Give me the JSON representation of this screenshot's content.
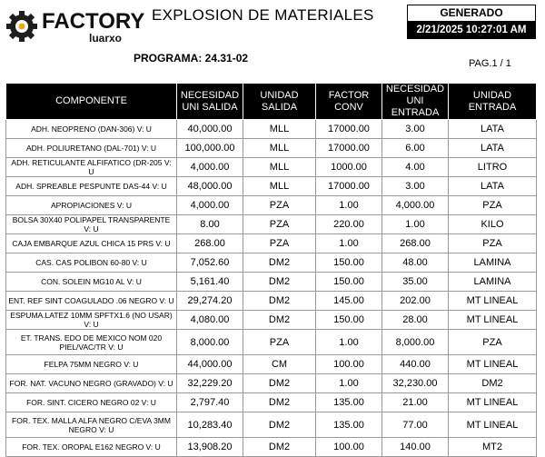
{
  "header": {
    "logo_text": "FACTORY",
    "logo_sub": "luarxo",
    "title": "EXPLOSION DE MATERIALES",
    "generated_label": "GENERADO",
    "generated_datetime": "2/21/2025 10:27:01 AM",
    "program": "PROGRAMA: 24.31-02",
    "page": "PAG.1 / 1",
    "brand_color": "#1a1a1a"
  },
  "table": {
    "columns": [
      "COMPONENTE",
      "NECESIDAD UNI SALIDA",
      "UNIDAD SALIDA",
      "FACTOR CONV",
      "NECESIDAD UNI ENTRADA",
      "UNIDAD ENTRADA"
    ],
    "rows": [
      [
        "ADH. NEOPRENO (DAN-306) V: U",
        "40,000.00",
        "MLL",
        "17000.00",
        "3.00",
        "LATA"
      ],
      [
        "ADH. POLIURETANO (DAL-701) V: U",
        "100,000.00",
        "MLL",
        "17000.00",
        "6.00",
        "LATA"
      ],
      [
        "ADH. RETICULANTE ALFIFATICO (DR-205 V: U",
        "4,000.00",
        "MLL",
        "1000.00",
        "4.00",
        "LITRO"
      ],
      [
        "ADH. SPREABLE PESPUNTE DAS-44 V: U",
        "48,000.00",
        "MLL",
        "17000.00",
        "3.00",
        "LATA"
      ],
      [
        "APROPIACIONES V: U",
        "4,000.00",
        "PZA",
        "1.00",
        "4,000.00",
        "PZA"
      ],
      [
        "BOLSA 30X40 POLIPAPEL TRANSPARENTE V: U",
        "8.00",
        "PZA",
        "220.00",
        "1.00",
        "KILO"
      ],
      [
        "CAJA EMBARQUE AZUL CHICA 15 PRS V: U",
        "268.00",
        "PZA",
        "1.00",
        "268.00",
        "PZA"
      ],
      [
        "CAS. CAS POLIBON 60-80 V: U",
        "7,052.60",
        "DM2",
        "150.00",
        "48.00",
        "LAMINA"
      ],
      [
        "CON. SOLEIN MG10 AL V: U",
        "5,161.40",
        "DM2",
        "150.00",
        "35.00",
        "LAMINA"
      ],
      [
        "ENT. REF SINT COAGULADO .06 NEGRO V: U",
        "29,274.20",
        "DM2",
        "145.00",
        "202.00",
        "MT LINEAL"
      ],
      [
        "ESPUMA.LATEZ 10MM SPFTX1.6 (NO USAR) V: U",
        "4,080.00",
        "DM2",
        "150.00",
        "28.00",
        "MT LINEAL"
      ],
      [
        "ET. TRANS. EDO DE MEXICO NOM 020 PIEL/VAC/TR V: U",
        "8,000.00",
        "PZA",
        "1.00",
        "8,000.00",
        "PZA"
      ],
      [
        "FELPA 75MM NEGRO V: U",
        "44,000.00",
        "CM",
        "100.00",
        "440.00",
        "MT LINEAL"
      ],
      [
        "FOR. NAT. VACUNO NEGRO (GRAVADO) V: U",
        "32,229.20",
        "DM2",
        "1.00",
        "32,230.00",
        "DM2"
      ],
      [
        "FOR. SINT. CICERO NEGRO 02 V: U",
        "2,797.40",
        "DM2",
        "135.00",
        "21.00",
        "MT LINEAL"
      ],
      [
        "FOR. TEX. MALLA ALFA NEGRO C/EVA 3MM NEGRO V: U",
        "10,283.40",
        "DM2",
        "135.00",
        "77.00",
        "MT LINEAL"
      ],
      [
        "FOR. TEX. OROPAL E162 NEGRO V: U",
        "13,908.20",
        "DM2",
        "100.00",
        "140.00",
        "MT2"
      ]
    ]
  }
}
